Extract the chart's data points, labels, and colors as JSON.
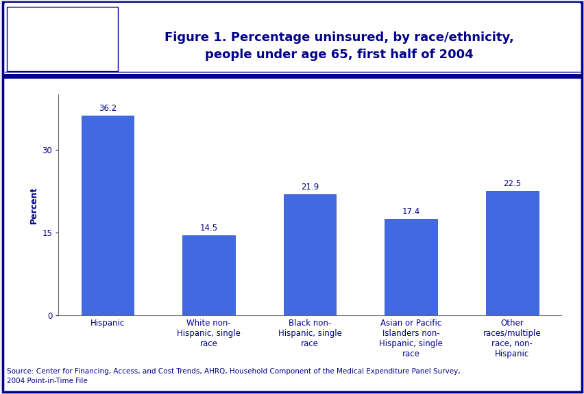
{
  "categories": [
    "Hispanic",
    "White non-\nHispanic, single\nrace",
    "Black non-\nHispanic, single\nrace",
    "Asian or Pacific\nIslanders non-\nHispanic, single\nrace",
    "Other\nraces/multiple\nrace, non-\nHispanic"
  ],
  "values": [
    36.2,
    14.5,
    21.9,
    17.4,
    22.5
  ],
  "bar_color": "#4169e1",
  "ylabel": "Percent",
  "yticks": [
    0,
    15,
    30
  ],
  "ylim": [
    0,
    40
  ],
  "title_line1": "Figure 1. Percentage uninsured, by race/ethnicity,",
  "title_line2": "people under age 65, first half of 2004",
  "title_color": "#00008B",
  "title_fontsize": 13,
  "label_fontsize": 8.5,
  "value_fontsize": 8.5,
  "ylabel_fontsize": 9,
  "source_text": "Source: Center for Financing, Access, and Cost Trends, AHRQ, Household Component of the Medical Expenditure Panel Survey,\n2004 Point-in-Time File",
  "source_fontsize": 7.5,
  "background_color": "#f0f0f8",
  "header_bar_color": "#00008B",
  "outer_border_color": "#00008B",
  "axis_label_color": "#00008B",
  "tick_label_color": "#00008B",
  "value_label_color": "#00008B",
  "logo_bg_color": "#3399bb",
  "chart_bg_color": "#ffffff"
}
